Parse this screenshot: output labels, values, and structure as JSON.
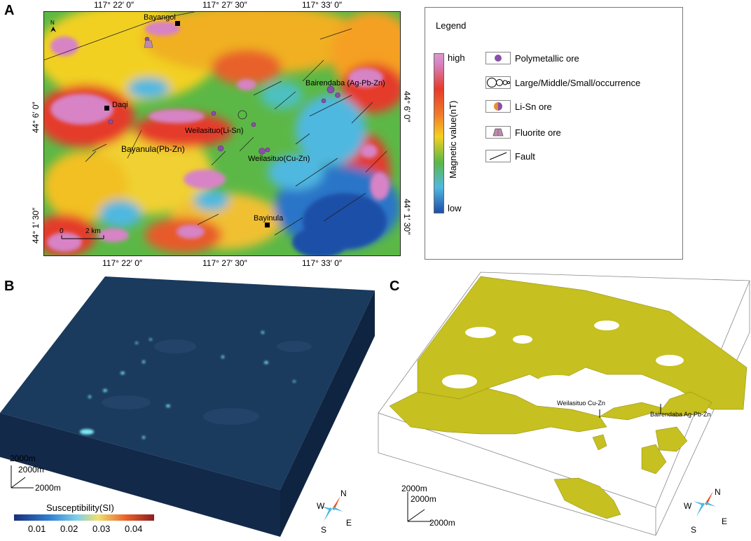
{
  "panels": {
    "a": "A",
    "b": "B",
    "c": "C"
  },
  "map": {
    "top_coords": [
      "117° 22′ 0″",
      "117° 27′ 30″",
      "117° 33′ 0″"
    ],
    "bottom_coords": [
      "117° 22′ 0″",
      "117° 27′ 30″",
      "117° 33′ 0″"
    ],
    "left_coords": [
      "44° 6′ 0″",
      "44° 1′ 30″"
    ],
    "right_coords": [
      "44° 6′ 0″",
      "44° 1′ 30″"
    ],
    "north": "N",
    "scale_zero": "0",
    "scale_label": "2 km",
    "places": {
      "bayangol": "Bayangol",
      "daqi": "Daqi",
      "bayinula": "Bayinula",
      "bairendaba": "Bairendaba (Ag-Pb-Zn)",
      "weilasituo_lisn": "Weilasituo(Li-Sn)",
      "bayanula": "Bayanula(Pb-Zn)",
      "weilasituo_cuzn": "Weilasituo(Cu-Zn)"
    }
  },
  "legend": {
    "title": "Legend",
    "colorbar_high": "high",
    "colorbar_low": "low",
    "colorbar_title": "Magnetic value(nT)",
    "items": [
      {
        "label": "Polymetallic ore",
        "icon": "purple-dot-icon"
      },
      {
        "label": "Large/Middle/Small/occurrence",
        "icon": "circles-size-icon"
      },
      {
        "label": "Li-Sn ore",
        "icon": "half-circle-icon"
      },
      {
        "label": "Fluorite ore",
        "icon": "trapezoid-icon"
      },
      {
        "label": "Fault",
        "icon": "fault-line-icon"
      }
    ]
  },
  "panel_b": {
    "scale_v": "2000m",
    "scale_h1": "2000m",
    "scale_h2": "2000m",
    "cbar_title": "Susceptibility(SI)",
    "cbar_ticks": [
      "0.01",
      "0.02",
      "0.03",
      "0.04"
    ],
    "compass": {
      "n": "N",
      "s": "S",
      "e": "E",
      "w": "W"
    }
  },
  "panel_c": {
    "scale_v": "2000m",
    "scale_h1": "2000m",
    "scale_h2": "2000m",
    "label_cuzn": "Weilasituo Cu-Zn",
    "label_agpbzn": "Bairendaba Ag-Pb-Zn",
    "compass": {
      "n": "N",
      "s": "S",
      "e": "E",
      "w": "W"
    }
  },
  "colors": {
    "magnetic_high": "#d080c0",
    "magnetic_low": "#1e4fa8",
    "block_dark": "#152d4a",
    "isosurface": "#c6c020",
    "ore_purple": "#8a4fa8"
  }
}
